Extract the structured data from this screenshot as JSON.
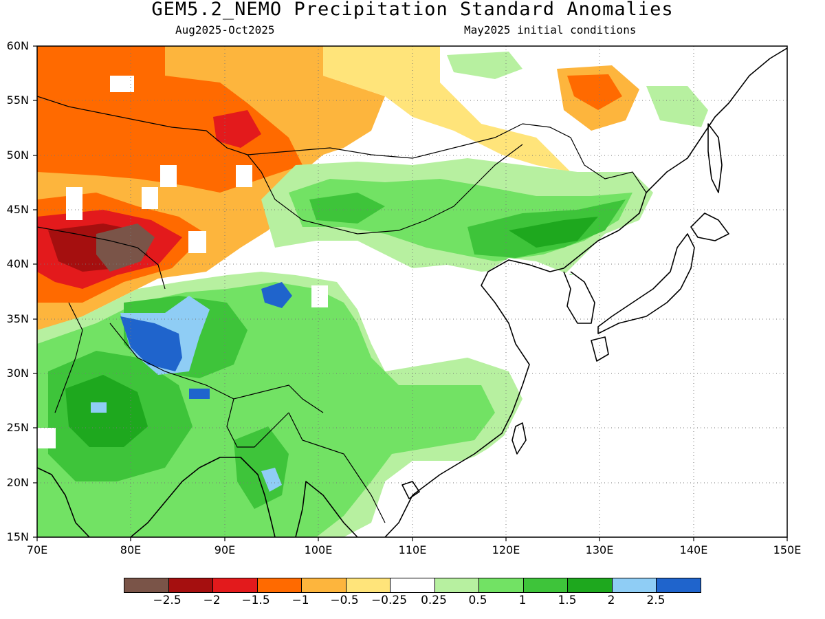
{
  "header": {
    "title": "GEM5.2_NEMO Precipitation Standard Anomalies",
    "period": "Aug2025-Oct2025",
    "initial_conditions": "May2025 initial conditions"
  },
  "map": {
    "lat_labels": [
      "60N",
      "55N",
      "50N",
      "45N",
      "40N",
      "35N",
      "30N",
      "25N",
      "20N",
      "15N"
    ],
    "lon_labels": [
      "70E",
      "80E",
      "90E",
      "100E",
      "110E",
      "120E",
      "130E",
      "140E",
      "150E"
    ],
    "lat_range": [
      15,
      60
    ],
    "lon_range": [
      70,
      150
    ],
    "grid": "dotted"
  },
  "colorbar": {
    "colors": [
      "#7a5448",
      "#a50f0f",
      "#e31a1c",
      "#ff6a00",
      "#fdb53d",
      "#ffe47a",
      "#ffffff",
      "#b7f0a0",
      "#72e264",
      "#3ec43a",
      "#1ea81e",
      "#8fcdf5",
      "#1f64cc"
    ],
    "labels": [
      "−2.5",
      "−2",
      "−1.5",
      "−1",
      "−0.5",
      "−0.25",
      "0.25",
      "0.5",
      "1",
      "1.5",
      "2",
      "2.5"
    ]
  }
}
